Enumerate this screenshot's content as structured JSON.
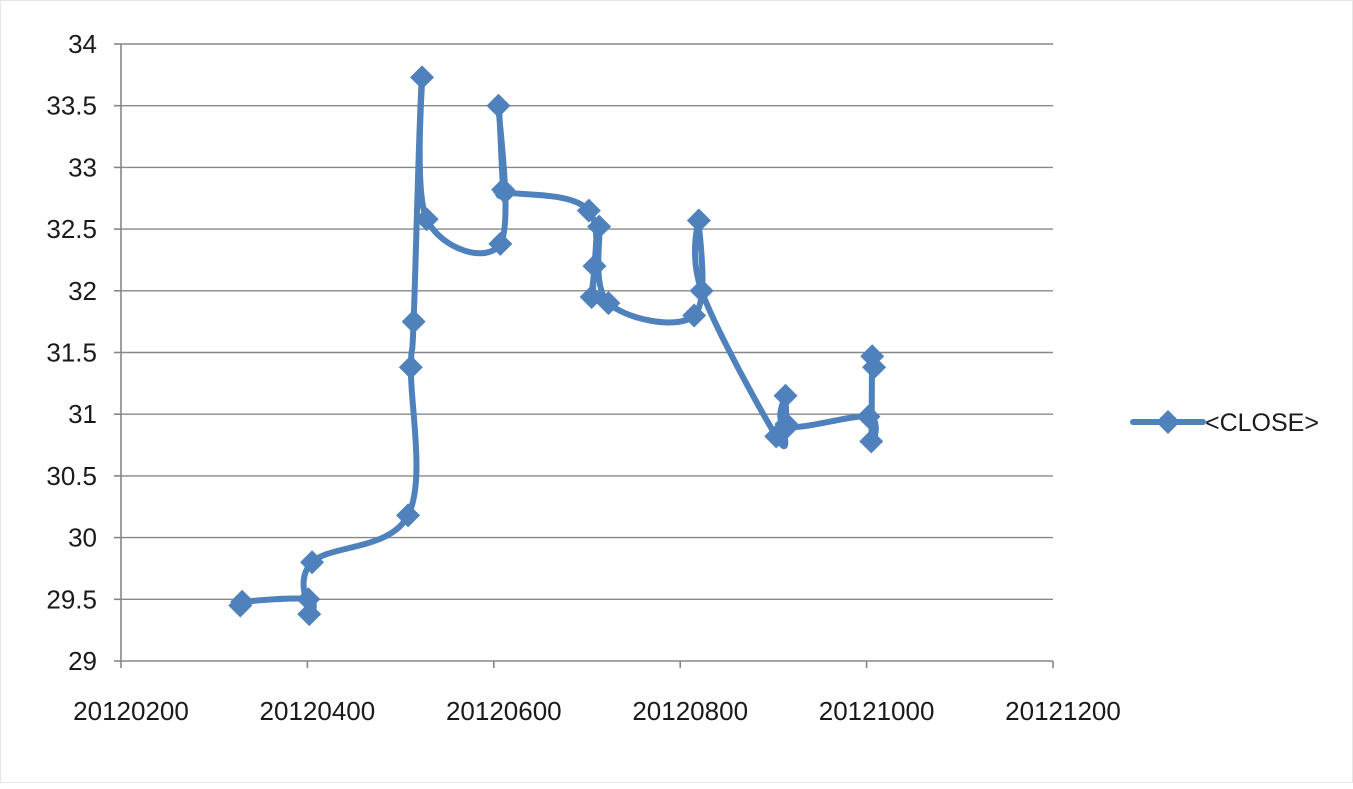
{
  "chart_data": {
    "type": "scatter",
    "title": "",
    "xlabel": "",
    "ylabel": "",
    "xlim": [
      20120200,
      20121200
    ],
    "ylim": [
      29,
      34
    ],
    "x_ticks": [
      "20120200",
      "20120400",
      "20120600",
      "20120800",
      "20121000",
      "20121200"
    ],
    "y_ticks": [
      "29",
      "29.5",
      "30",
      "30.5",
      "31",
      "31.5",
      "32",
      "32.5",
      "33",
      "33.5",
      "34"
    ],
    "grid": true,
    "legend_position": "right",
    "line_style": "smoothed-line-with-diamond-markers",
    "color": "#4F81BD",
    "series": [
      {
        "name": "<CLOSE>",
        "x": [
          20120328,
          20120330,
          20120401,
          20120402,
          20120405,
          20120508,
          20120511,
          20120514,
          20120523,
          20120528,
          20120607,
          20120605,
          20120610,
          20120612,
          20120702,
          20120705,
          20120708,
          20120713,
          20120723,
          20120815,
          20120820,
          20120823,
          20120903,
          20120912,
          20120914,
          20120913,
          20120915,
          20121002,
          20121005,
          20121006,
          20121008
        ],
        "y": [
          29.45,
          29.48,
          29.5,
          29.38,
          29.8,
          30.18,
          31.38,
          31.75,
          33.73,
          32.58,
          32.38,
          33.5,
          32.82,
          32.8,
          32.65,
          31.95,
          32.2,
          32.52,
          31.9,
          31.8,
          32.57,
          32.0,
          30.82,
          30.88,
          30.92,
          31.15,
          30.9,
          30.98,
          30.78,
          31.47,
          31.38
        ]
      }
    ]
  }
}
